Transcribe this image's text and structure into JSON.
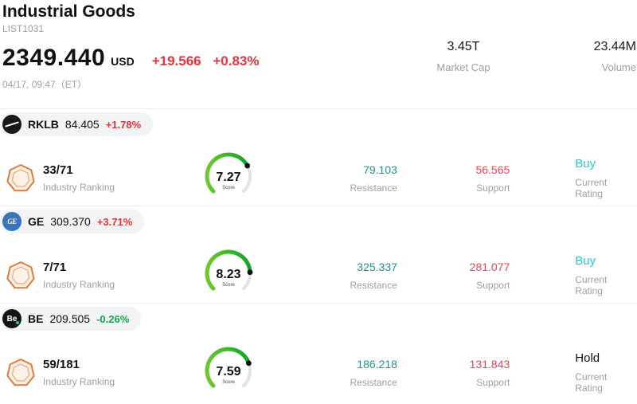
{
  "header": {
    "title": "Industrial Goods",
    "list_id": "LIST1031",
    "price": "2349.440",
    "currency": "USD",
    "change_abs": "+19.566",
    "change_pct": "+0.83%",
    "datetime": "04/17, 09:47（ET）",
    "market_cap_value": "3.45T",
    "market_cap_label": "Market Cap",
    "volume_value": "23.44M",
    "volume_label": "Volume"
  },
  "labels": {
    "industry_ranking": "Industry Ranking",
    "resistance": "Resistance",
    "support": "Support",
    "current_rating": "Current Rating",
    "score": "Score"
  },
  "colors": {
    "up": "#e8323c",
    "down": "#0ca750",
    "resistance": "#17988c",
    "support": "#f04352",
    "buy": "#2bc8cf",
    "hold": "#111111"
  },
  "stocks": [
    {
      "ticker": "RKLB",
      "logo_text": "",
      "logo_bg": "#17181a",
      "price": "84.405",
      "change": "+1.78%",
      "direction": "up",
      "ranking": "33/71",
      "score": "7.27",
      "resistance": "79.103",
      "support": "56.565",
      "rating": "Buy",
      "rating_type": "buy"
    },
    {
      "ticker": "GE",
      "logo_text": "GE",
      "logo_bg": "#3b74bd",
      "price": "309.370",
      "change": "+3.71%",
      "direction": "up",
      "ranking": "7/71",
      "score": "8.23",
      "resistance": "325.337",
      "support": "281.077",
      "rating": "Buy",
      "rating_type": "buy"
    },
    {
      "ticker": "BE",
      "logo_text": "Be",
      "logo_bg": "#131313",
      "price": "209.505",
      "change": "-0.26%",
      "direction": "down",
      "ranking": "59/181",
      "score": "7.59",
      "resistance": "186.218",
      "support": "131.843",
      "rating": "Hold",
      "rating_type": "hold"
    }
  ]
}
